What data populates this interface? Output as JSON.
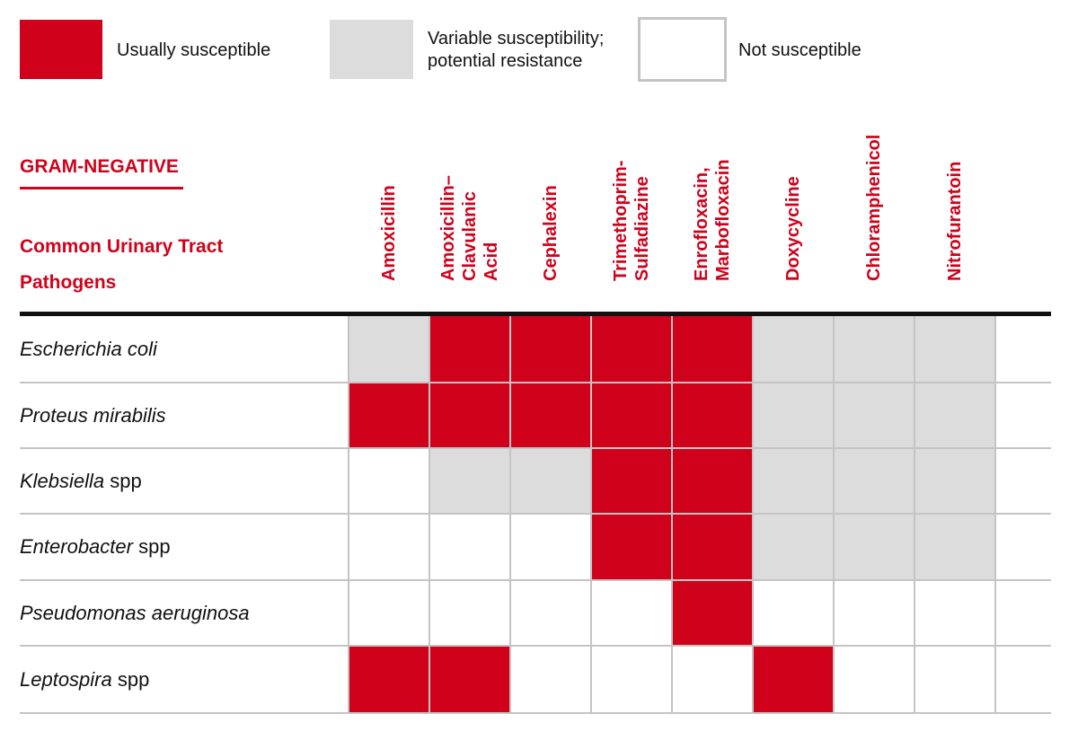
{
  "colors": {
    "usually_susceptible": "#d0021b",
    "variable_susceptibility": "#dcdcdc",
    "not_susceptible": "#ffffff",
    "accent": "#d0021b"
  },
  "legend": [
    {
      "key": "S",
      "label_lines": [
        "Usually susceptible"
      ]
    },
    {
      "key": "V",
      "label_lines": [
        "Variable susceptibility;",
        "potential resistance"
      ]
    },
    {
      "key": "N",
      "label_lines": [
        "Not susceptible"
      ]
    }
  ],
  "section_title": "GRAM-NEGATIVE",
  "subtitle_lines": [
    "Common Urinary Tract",
    "Pathogens"
  ],
  "chart_data": {
    "type": "heatmap",
    "title": "GRAM-NEGATIVE",
    "subtitle": "Common Urinary Tract Pathogens",
    "categories_key": {
      "S": "Usually susceptible",
      "V": "Variable susceptibility; potential resistance",
      "N": "Not susceptible"
    },
    "columns": [
      {
        "lines": [
          "Amoxicillin"
        ]
      },
      {
        "lines": [
          "Amoxicillin–",
          "Clavulanic",
          "Acid"
        ]
      },
      {
        "lines": [
          "Cephalexin"
        ]
      },
      {
        "lines": [
          "Trimethoprim-",
          "Sulfadiazine"
        ]
      },
      {
        "lines": [
          "Enrofloxacin,",
          "Marbofloxacin"
        ]
      },
      {
        "lines": [
          "Doxycycline"
        ]
      },
      {
        "lines": [
          "Chloramphenicol"
        ]
      },
      {
        "lines": [
          "Nitrofurantoin"
        ]
      }
    ],
    "rows": [
      {
        "italic": "Escherichia coli",
        "suffix": "",
        "values": [
          "V",
          "S",
          "S",
          "S",
          "S",
          "V",
          "V",
          "V"
        ]
      },
      {
        "italic": "Proteus mirabilis",
        "suffix": "",
        "values": [
          "S",
          "S",
          "S",
          "S",
          "S",
          "V",
          "V",
          "V"
        ]
      },
      {
        "italic": "Klebsiella",
        "suffix": " spp",
        "values": [
          "N",
          "V",
          "V",
          "S",
          "S",
          "V",
          "V",
          "V"
        ]
      },
      {
        "italic": "Enterobacter",
        "suffix": " spp",
        "values": [
          "N",
          "N",
          "N",
          "S",
          "S",
          "V",
          "V",
          "V"
        ]
      },
      {
        "italic": "Pseudomonas aeruginosa",
        "suffix": "",
        "values": [
          "N",
          "N",
          "N",
          "N",
          "S",
          "N",
          "N",
          "N"
        ]
      },
      {
        "italic": "Leptospira",
        "suffix": " spp",
        "values": [
          "S",
          "S",
          "N",
          "N",
          "N",
          "S",
          "N",
          "N"
        ]
      }
    ]
  }
}
